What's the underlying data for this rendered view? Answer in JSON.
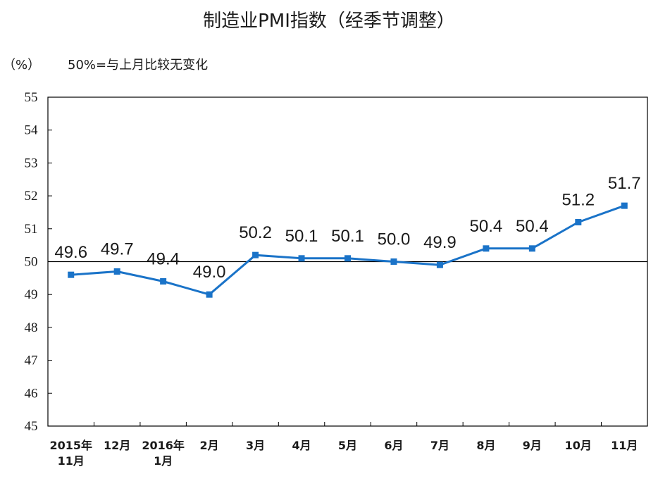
{
  "chart_data": {
    "type": "line",
    "title": "制造业PMI指数（经季节调整）",
    "unit_label": "（%）",
    "note": "50%=与上月比较无变化",
    "categories": [
      [
        "2015年",
        "11月"
      ],
      [
        "12月"
      ],
      [
        "2016年",
        "1月"
      ],
      [
        "2月"
      ],
      [
        "3月"
      ],
      [
        "4月"
      ],
      [
        "5月"
      ],
      [
        "6月"
      ],
      [
        "7月"
      ],
      [
        "8月"
      ],
      [
        "9月"
      ],
      [
        "10月"
      ],
      [
        "11月"
      ]
    ],
    "values": [
      49.6,
      49.7,
      49.4,
      49.0,
      50.2,
      50.1,
      50.1,
      50.0,
      49.9,
      50.4,
      50.4,
      51.2,
      51.7
    ],
    "value_labels": [
      "49.6",
      "49.7",
      "49.4",
      "49.0",
      "50.2",
      "50.1",
      "50.1",
      "50.0",
      "49.9",
      "50.4",
      "50.4",
      "51.2",
      "51.7"
    ],
    "ylim": [
      45,
      55
    ],
    "yticks": [
      45,
      46,
      47,
      48,
      49,
      50,
      51,
      52,
      53,
      54,
      55
    ],
    "reference_line": 50,
    "grid": false,
    "legend": "none",
    "colors": {
      "line": "#1a73c8",
      "axis": "#000000"
    }
  }
}
